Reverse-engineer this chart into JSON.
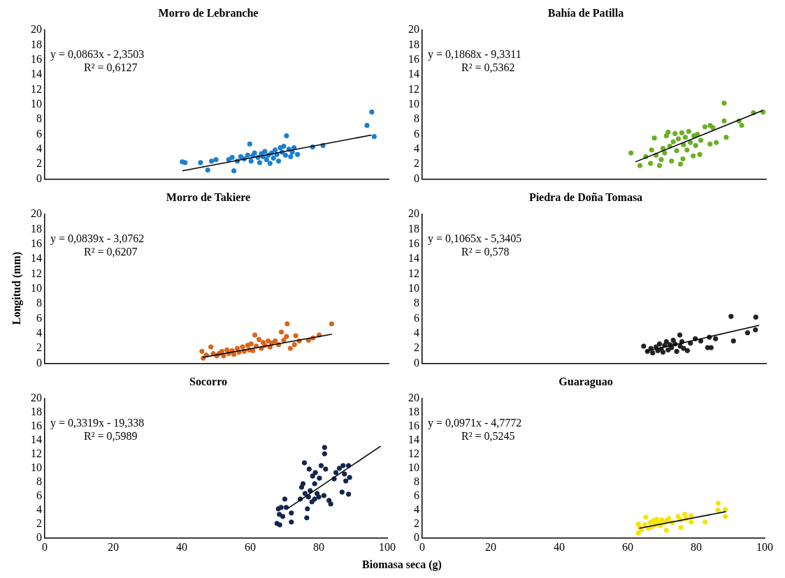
{
  "chart_data": [
    {
      "type": "scatter",
      "title": "Morro de Lebranche",
      "xlim": [
        0,
        100
      ],
      "xticks": [
        0,
        20,
        40,
        60,
        80,
        100
      ],
      "ylim": [
        0,
        20
      ],
      "yticks": [
        0,
        2,
        4,
        6,
        8,
        10,
        12,
        14,
        16,
        18,
        20
      ],
      "tick_labels": "y",
      "marker": "circle",
      "annotations": [
        "y = 0,0863x - 2,3503",
        "R² = 0,6127"
      ],
      "series": [
        {
          "type": "scatter",
          "color": "#1a7fd0",
          "x": [
            40,
            40.8,
            45.3,
            47.4,
            48.5,
            49.8,
            53.5,
            54.5,
            55,
            56,
            57,
            58,
            59,
            59.6,
            60,
            60.5,
            61,
            62,
            62.5,
            63,
            63.5,
            64,
            64.5,
            65,
            65.5,
            66,
            66.5,
            67,
            67.5,
            68,
            68.5,
            69,
            69.5,
            70,
            70.3,
            71,
            71.5,
            72,
            72.5,
            73.5,
            77.9,
            80.9,
            93.7,
            95.1,
            95.8
          ],
          "values": [
            2.3,
            2.2,
            2.2,
            1.2,
            2.4,
            2.6,
            2.6,
            2.9,
            1.1,
            2.4,
            3.0,
            2.7,
            3.2,
            4.7,
            2.4,
            3.1,
            3.5,
            2.9,
            2.2,
            3.4,
            3.0,
            3.7,
            2.6,
            3.2,
            2.1,
            3.5,
            2.8,
            3.9,
            3.3,
            2.4,
            4.2,
            3.6,
            4.4,
            3.2,
            5.8,
            4.0,
            3.0,
            3.6,
            4.2,
            3.3,
            4.3,
            4.5,
            7.2,
            9.0,
            5.7
          ]
        },
        {
          "type": "line",
          "color": "#000000",
          "marker": "none",
          "x": [
            40,
            95
          ],
          "values": [
            1.1,
            5.9
          ]
        }
      ]
    },
    {
      "type": "scatter",
      "title": "Bahía de Patilla",
      "xlim": [
        0,
        100
      ],
      "xticks": [
        0,
        20,
        40,
        60,
        80,
        100
      ],
      "ylim": [
        0,
        20
      ],
      "yticks": [
        0,
        2,
        4,
        6,
        8,
        10,
        12,
        14,
        16,
        18,
        20
      ],
      "tick_labels": "y",
      "marker": "circle",
      "annotations": [
        "y = 0,1868x - 9,3311",
        "R² = 0,5362"
      ],
      "series": [
        {
          "type": "scatter",
          "color": "#6ab023",
          "x": [
            60.7,
            63.3,
            65,
            66.4,
            66.7,
            67.5,
            68,
            69,
            69.5,
            70,
            70.5,
            71,
            71.5,
            72,
            72.5,
            73,
            73.5,
            74,
            74.5,
            75.1,
            75.5,
            75.8,
            76,
            76.5,
            77,
            77.5,
            78,
            78.8,
            79,
            79.5,
            80,
            80.7,
            81,
            82.2,
            83.7,
            83.7,
            84.5,
            85.5,
            87.8,
            87.8,
            88.4,
            92.1,
            92.9,
            96.3,
            99.1
          ],
          "values": [
            3.5,
            1.8,
            3.0,
            2.1,
            3.9,
            5.5,
            3.2,
            1.8,
            2.6,
            4.1,
            3.5,
            5.8,
            6.3,
            4.4,
            2.4,
            5.0,
            6.1,
            3.8,
            5.4,
            2.0,
            6.2,
            2.7,
            4.6,
            5.6,
            3.9,
            6.4,
            4.9,
            3.1,
            5.8,
            4.5,
            6.0,
            3.3,
            5.2,
            7.0,
            7.2,
            4.7,
            6.9,
            4.9,
            10.2,
            7.8,
            5.6,
            7.8,
            7.2,
            8.9,
            9.0
          ]
        },
        {
          "type": "line",
          "color": "#000000",
          "marker": "none",
          "x": [
            62,
            99
          ],
          "values": [
            2.3,
            9.2
          ]
        }
      ]
    },
    {
      "type": "scatter",
      "title": "Morro de Takiere",
      "ylabel": "Longitud (mm)",
      "xlim": [
        0,
        100
      ],
      "xticks": [
        0,
        20,
        40,
        60,
        80,
        100
      ],
      "ylim": [
        0,
        20
      ],
      "yticks": [
        0,
        2,
        4,
        6,
        8,
        10,
        12,
        14,
        16,
        18,
        20
      ],
      "tick_labels": "y",
      "marker": "circle",
      "annotations": [
        "y = 0,0839x - 3,0762",
        "R² = 0,6207"
      ],
      "series": [
        {
          "type": "scatter",
          "color": "#d9661a",
          "x": [
            45.7,
            46.1,
            47,
            48.3,
            49,
            50,
            50.7,
            51.5,
            52,
            53,
            53.5,
            54.5,
            55,
            56,
            56.5,
            57.5,
            58,
            59,
            59.5,
            60,
            60.5,
            61.1,
            61.5,
            62.3,
            63,
            63.5,
            64,
            65,
            65.5,
            66,
            67,
            68,
            68.8,
            69.5,
            70.3,
            70.5,
            71.4,
            72.6,
            73,
            74,
            76.7,
            78,
            79.8,
            83.4
          ],
          "values": [
            1.6,
            0.7,
            1.1,
            2.2,
            1.3,
            1.0,
            1.3,
            1.6,
            1.0,
            1.8,
            1.3,
            1.7,
            1.2,
            2.0,
            1.5,
            2.2,
            1.6,
            2.4,
            1.8,
            2.6,
            1.7,
            3.8,
            2.3,
            3.2,
            2.0,
            2.8,
            2.4,
            3.0,
            2.2,
            2.7,
            3.0,
            2.5,
            4.2,
            3.1,
            3.6,
            5.3,
            2.0,
            2.5,
            3.7,
            3.0,
            3.1,
            3.4,
            3.8,
            5.3
          ]
        },
        {
          "type": "line",
          "color": "#000000",
          "marker": "none",
          "x": [
            46,
            83.5
          ],
          "values": [
            0.8,
            3.9
          ]
        }
      ]
    },
    {
      "type": "scatter",
      "title": "Piedra de Doña Tomasa",
      "xlim": [
        0,
        100
      ],
      "xticks": [
        0,
        20,
        40,
        60,
        80,
        100
      ],
      "ylim": [
        0,
        20
      ],
      "yticks": [
        0,
        2,
        4,
        6,
        8,
        10,
        12,
        14,
        16,
        18,
        20
      ],
      "tick_labels": "y",
      "marker": "circle",
      "annotations": [
        "y = 0,1065x - 5,3405",
        "R² = 0,578"
      ],
      "series": [
        {
          "type": "scatter",
          "color": "#222222",
          "x": [
            64.4,
            65.5,
            66.5,
            67,
            68,
            68.5,
            69,
            69.5,
            70,
            70.5,
            71,
            71.5,
            72,
            72.5,
            73,
            73.5,
            74,
            74.9,
            75,
            75.5,
            76,
            77.1,
            78,
            79.4,
            81,
            83,
            83.5,
            84,
            85.3,
            89.8,
            90.5,
            94.6,
            96.9,
            97
          ],
          "values": [
            2.3,
            1.6,
            2.0,
            1.4,
            2.2,
            1.7,
            2.6,
            1.9,
            1.5,
            2.4,
            2.9,
            1.8,
            2.5,
            2.1,
            3.1,
            2.6,
            1.6,
            3.8,
            2.3,
            2.9,
            2.0,
            1.7,
            2.7,
            3.3,
            3.0,
            2.1,
            3.5,
            2.1,
            3.3,
            6.3,
            3.0,
            4.1,
            4.5,
            6.2
          ]
        },
        {
          "type": "line",
          "color": "#000000",
          "marker": "none",
          "x": [
            65,
            98
          ],
          "values": [
            1.6,
            5.1
          ]
        }
      ]
    },
    {
      "type": "scatter",
      "title": "Socorro",
      "xlabel": "Biomasa seca (g)",
      "xlim": [
        0,
        100
      ],
      "xticks": [
        0,
        20,
        40,
        60,
        80,
        100
      ],
      "ylim": [
        0,
        20
      ],
      "yticks": [
        0,
        2,
        4,
        6,
        8,
        10,
        12,
        14,
        16,
        18,
        20
      ],
      "marker": "circle",
      "annotations": [
        "y = 0,3319x - 19,338",
        "R² = 0,5989"
      ],
      "series": [
        {
          "type": "scatter",
          "color": "#14264d",
          "x": [
            67.8,
            68.6,
            68.2,
            68.5,
            69,
            69.5,
            70.1,
            70.5,
            72,
            72,
            74.6,
            75,
            75.4,
            75.8,
            76,
            76.5,
            76.7,
            77,
            77.2,
            77.5,
            78,
            78.2,
            78.8,
            78.8,
            79,
            79.5,
            80,
            80.2,
            80.7,
            81.5,
            81.7,
            81.7,
            82,
            83,
            83.5,
            84.5,
            85,
            86,
            86.8,
            87.1,
            87.5,
            87.9,
            88.7,
            88.7,
            89
          ],
          "values": [
            2.1,
            1.9,
            4.2,
            3.4,
            4.4,
            3.1,
            5.6,
            4.4,
            2.3,
            3.6,
            5.6,
            7.3,
            7.8,
            10.8,
            6.4,
            2.9,
            4.2,
            5.9,
            9.9,
            6.8,
            5.2,
            8.9,
            7.8,
            5.6,
            9.4,
            6.4,
            5.9,
            8.6,
            10.4,
            6.1,
            13.0,
            12.1,
            9.9,
            5.4,
            4.9,
            8.5,
            9.4,
            10.0,
            6.6,
            10.4,
            9.2,
            8.2,
            10.4,
            6.3,
            8.7
          ]
        },
        {
          "type": "line",
          "color": "#000000",
          "marker": "none",
          "x": [
            70.8,
            98.1
          ],
          "values": [
            4.2,
            13.2
          ]
        }
      ]
    },
    {
      "type": "scatter",
      "title": "Guaraguao",
      "xlim": [
        0,
        100
      ],
      "xticks": [
        0,
        20,
        40,
        60,
        80,
        100
      ],
      "ylim": [
        0,
        20
      ],
      "yticks": [
        0,
        2,
        4,
        6,
        8,
        10,
        12,
        14,
        16,
        18,
        20
      ],
      "marker": "circle",
      "annotations": [
        "y = 0,0971x - 4,7772",
        "R² = 0,5245"
      ],
      "series": [
        {
          "type": "scatter",
          "color": "#f5e400",
          "x": [
            63.1,
            63.1,
            63.5,
            64,
            65,
            65.3,
            66,
            66.5,
            67,
            67.5,
            68,
            68.5,
            69,
            69.5,
            70,
            70.5,
            71.3,
            71.5,
            72,
            73,
            74.7,
            75.5,
            75.5,
            76.6,
            77,
            78.5,
            78.5,
            82.6,
            86.4,
            86.4,
            88.5,
            88.5
          ],
          "values": [
            2.0,
            0.7,
            1.5,
            1.2,
            1.9,
            3.0,
            1.4,
            2.2,
            1.6,
            2.5,
            1.9,
            2.7,
            2.3,
            1.8,
            2.6,
            2.2,
            1.1,
            2.5,
            2.8,
            2.2,
            3.1,
            1.5,
            2.6,
            3.4,
            2.8,
            3.2,
            2.3,
            2.3,
            5.0,
            4.0,
            4.1,
            3.1
          ]
        },
        {
          "type": "line",
          "color": "#000000",
          "marker": "none",
          "x": [
            63.4,
            88.7
          ],
          "values": [
            1.4,
            3.8
          ]
        }
      ]
    }
  ]
}
